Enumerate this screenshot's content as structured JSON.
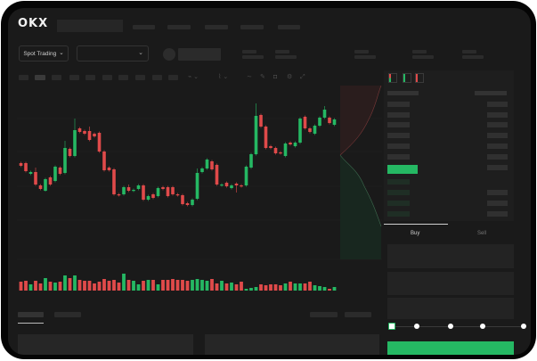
{
  "brand": {
    "logo_text": "OKX"
  },
  "toolbar": {
    "market_selector_label": "Spot Trading",
    "chevron": "⌄"
  },
  "icons": {
    "chevron": "chevron-down-icon",
    "draw": "pencil-icon",
    "camera": "camera-icon",
    "settings": "gear-icon",
    "fullscreen": "expand-icon"
  },
  "trade_panel": {
    "tabs": [
      {
        "label": "Buy",
        "active": true
      },
      {
        "label": "Sell",
        "active": false
      }
    ],
    "slider_steps": 5,
    "slider_value_percent": 0
  },
  "colors": {
    "up": "#25b863",
    "down": "#e04a4a",
    "accent": "#25b863",
    "background": "#1a1a1a"
  },
  "chart_data": {
    "type": "candlestick",
    "title": "",
    "xlabel": "",
    "ylabel": "",
    "grid": true,
    "candles": [
      [
        158,
        155
      ],
      [
        158,
        149
      ],
      [
        146,
        148
      ],
      [
        148,
        134,
        153,
        null
      ],
      [
        133,
        129
      ],
      [
        127,
        140,
        null,
        126
      ],
      [
        142,
        134
      ],
      [
        138,
        154
      ],
      [
        153,
        146
      ],
      [
        147,
        175,
        183,
        null
      ],
      [
        174,
        166
      ],
      [
        166,
        195,
        208,
        null
      ],
      [
        197,
        193
      ],
      [
        194,
        191
      ],
      [
        194,
        184,
        199,
        null
      ],
      [
        191,
        188
      ],
      [
        192,
        171
      ],
      [
        171,
        150
      ],
      [
        153,
        150
      ],
      [
        151,
        123
      ],
      [
        123,
        122
      ],
      [
        123,
        131
      ],
      [
        131,
        127,
        134,
        null
      ],
      [
        127,
        128
      ],
      [
        129,
        133
      ],
      [
        133,
        117
      ],
      [
        117,
        121
      ],
      [
        123,
        119
      ],
      [
        121,
        130
      ],
      [
        131,
        129
      ],
      [
        131,
        121
      ],
      [
        131,
        123
      ],
      [
        123,
        122
      ],
      [
        122,
        112
      ],
      [
        113,
        111
      ],
      [
        111,
        117
      ],
      [
        118,
        147,
        152,
        null
      ],
      [
        148,
        152
      ],
      [
        152,
        162
      ],
      [
        160,
        151
      ],
      [
        156,
        134
      ],
      [
        133,
        134
      ],
      [
        136,
        132
      ],
      [
        130,
        133
      ],
      [
        135,
        133,
        null,
        125
      ],
      [
        133,
        132
      ],
      [
        133,
        154
      ],
      [
        153,
        168
      ],
      [
        168,
        211,
        225,
        null
      ],
      [
        212,
        199
      ],
      [
        199,
        175
      ],
      [
        177,
        175
      ],
      [
        175,
        169
      ],
      [
        170,
        169
      ],
      [
        166,
        180
      ],
      [
        181,
        179
      ],
      [
        177,
        181
      ],
      [
        181,
        208
      ],
      [
        210,
        197
      ],
      [
        197,
        193
      ],
      [
        191,
        200
      ],
      [
        200,
        209
      ],
      [
        209,
        218,
        222,
        null
      ],
      [
        209,
        203
      ],
      [
        201,
        207
      ]
    ],
    "candle_format": [
      "open",
      "close",
      "high",
      "low"
    ],
    "volume": [
      10,
      11,
      7,
      11,
      8,
      14,
      10,
      9,
      10,
      17,
      14,
      17,
      12,
      11,
      11,
      8,
      10,
      13,
      11,
      12,
      9,
      19,
      12,
      11,
      7,
      11,
      12,
      12,
      7,
      12,
      12,
      13,
      12,
      12,
      11,
      12,
      13,
      12,
      11,
      13,
      8,
      11,
      8,
      9,
      7,
      10,
      2,
      3,
      4,
      7,
      6,
      7,
      7,
      6,
      8,
      10,
      8,
      8,
      8,
      10,
      6,
      5,
      4,
      2,
      4
    ]
  }
}
